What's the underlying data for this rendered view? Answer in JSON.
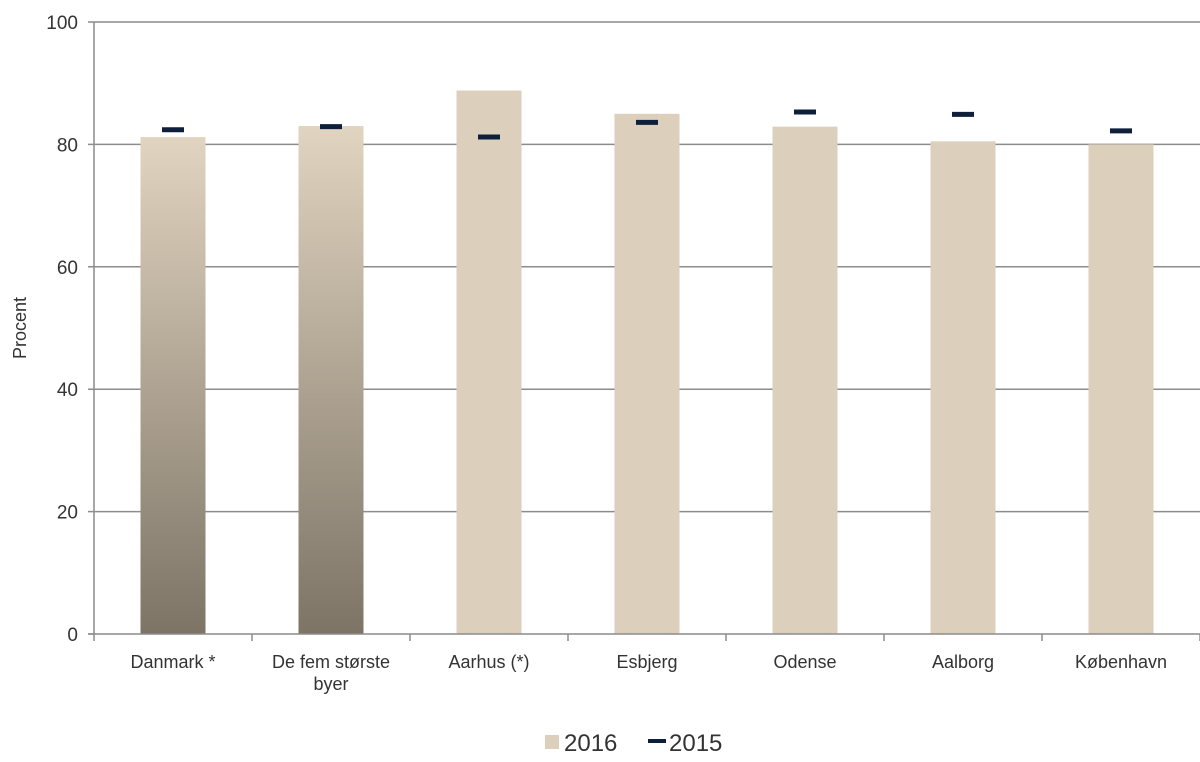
{
  "chart_data": {
    "type": "bar",
    "ylabel": "Procent",
    "ylim": [
      0,
      100
    ],
    "yticks": [
      0,
      20,
      40,
      60,
      80,
      100
    ],
    "grid": true,
    "legend_position": "bottom",
    "categories": [
      [
        "Danmark *"
      ],
      [
        "De fem største",
        "byer"
      ],
      [
        "Aarhus (*)"
      ],
      [
        "Esbjerg"
      ],
      [
        "Odense"
      ],
      [
        "Aalborg"
      ],
      [
        "København"
      ]
    ],
    "highlighted_categories": [
      0,
      1
    ],
    "series": [
      {
        "name": "2016",
        "kind": "bar",
        "color": "#dccfbc",
        "values": [
          81.2,
          83.0,
          88.8,
          85.0,
          82.9,
          80.5,
          80.0
        ]
      },
      {
        "name": "2015",
        "kind": "marker",
        "color": "#0d1f3a",
        "values": [
          82.4,
          82.9,
          81.2,
          83.6,
          85.3,
          84.9,
          82.2
        ]
      }
    ],
    "highlight_gradient": [
      "#e1d4c0",
      "#7d7466"
    ]
  }
}
